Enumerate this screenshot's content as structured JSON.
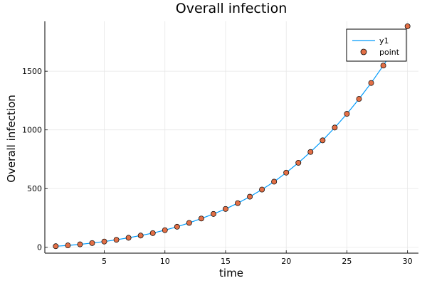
{
  "chart_data": {
    "type": "scatter",
    "title": "Overall infection",
    "xlabel": "time",
    "ylabel": "Overall infection",
    "xlim": [
      0.1,
      30.9
    ],
    "ylim": [
      -50,
      1925
    ],
    "xticks": [
      5,
      10,
      15,
      20,
      25,
      30
    ],
    "yticks": [
      0,
      500,
      1000,
      1500
    ],
    "grid": true,
    "legend_position": "top-right",
    "x": [
      1,
      2,
      3,
      4,
      5,
      6,
      7,
      8,
      9,
      10,
      11,
      12,
      13,
      14,
      15,
      16,
      17,
      18,
      19,
      20,
      21,
      22,
      23,
      24,
      25,
      26,
      27,
      28,
      29,
      30
    ],
    "series": [
      {
        "name": "y1",
        "kind": "line",
        "color": "#009AFA",
        "values": [
          9,
          16,
          25,
          36,
          49,
          64,
          81,
          100,
          121,
          146,
          175,
          208,
          245,
          284,
          327,
          376,
          431,
          492,
          559,
          636,
          720,
          812,
          911,
          1020,
          1137,
          1264,
          1400,
          1548,
          1709,
          1883
        ]
      },
      {
        "name": "point",
        "kind": "scatter",
        "color": "#E26F46",
        "values": [
          9,
          16,
          25,
          36,
          49,
          64,
          81,
          100,
          121,
          146,
          175,
          208,
          245,
          284,
          327,
          376,
          431,
          492,
          559,
          636,
          720,
          812,
          911,
          1020,
          1137,
          1264,
          1400,
          1548,
          1709,
          1883
        ]
      }
    ]
  }
}
